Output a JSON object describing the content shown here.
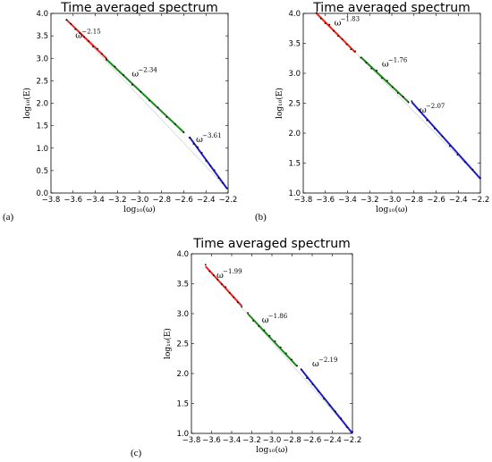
{
  "chart_data": [
    {
      "type": "line",
      "panel_label": "(a)",
      "title": "Time averaged spectrum",
      "xlabel": "log₁₀(ω)",
      "ylabel": "log₁₀(E)",
      "xlim": [
        -3.8,
        -2.2
      ],
      "ylim": [
        0.0,
        4.0
      ],
      "xticks": [
        -3.8,
        -3.6,
        -3.4,
        -3.2,
        -3.0,
        -2.8,
        -2.6,
        -2.4,
        -2.2
      ],
      "xtick_labels": [
        "−3.8",
        "−3.6",
        "−3.4",
        "−3.2",
        "−3.0",
        "−2.8",
        "−2.6",
        "−2.4",
        "−2.2"
      ],
      "yticks": [
        0.0,
        0.5,
        1.0,
        1.5,
        2.0,
        2.5,
        3.0,
        3.5,
        4.0
      ],
      "ytick_labels": [
        "0.0",
        "0.5",
        "1.0",
        "1.5",
        "2.0",
        "2.5",
        "3.0",
        "3.5",
        "4.0"
      ],
      "grid": false,
      "series": [
        {
          "color": "#e8241b",
          "x": [
            -3.66,
            -3.3
          ],
          "y": [
            3.86,
            3.0
          ]
        },
        {
          "color": "#1a8a1a",
          "x": [
            -3.3,
            -2.6
          ],
          "y": [
            2.98,
            1.35
          ]
        },
        {
          "color": "#1e1ec8",
          "x": [
            -2.55,
            -2.21
          ],
          "y": [
            1.25,
            0.1
          ]
        }
      ],
      "annotations": [
        {
          "base": "ω",
          "exponent": "−2.15",
          "x": -3.58,
          "y": 3.45
        },
        {
          "base": "ω",
          "exponent": "−2.34",
          "x": -3.07,
          "y": 2.6
        },
        {
          "base": "ω",
          "exponent": "−3.61",
          "x": -2.49,
          "y": 1.13
        }
      ]
    },
    {
      "type": "line",
      "panel_label": "(b)",
      "title": "Time averaged spectrum",
      "xlabel": "log₁₀(ω)",
      "ylabel": "log₁₀(E)",
      "xlim": [
        -3.8,
        -2.2
      ],
      "ylim": [
        1.0,
        4.0
      ],
      "xticks": [
        -3.8,
        -3.6,
        -3.4,
        -3.2,
        -3.0,
        -2.8,
        -2.6,
        -2.4,
        -2.2
      ],
      "xtick_labels": [
        "−3.8",
        "−3.6",
        "−3.4",
        "−3.2",
        "−3.0",
        "−2.8",
        "−2.6",
        "−2.4",
        "−2.2"
      ],
      "yticks": [
        1.0,
        1.5,
        2.0,
        2.5,
        3.0,
        3.5,
        4.0
      ],
      "ytick_labels": [
        "1.0",
        "1.5",
        "2.0",
        "2.5",
        "3.0",
        "3.5",
        "4.0"
      ],
      "grid": false,
      "series": [
        {
          "color": "#e8241b",
          "x": [
            -3.68,
            -3.33
          ],
          "y": [
            4.0,
            3.35
          ]
        },
        {
          "color": "#1a8a1a",
          "x": [
            -3.28,
            -2.85
          ],
          "y": [
            3.27,
            2.52
          ]
        },
        {
          "color": "#1e1ec8",
          "x": [
            -2.82,
            -2.2
          ],
          "y": [
            2.52,
            1.24
          ]
        }
      ],
      "annotations": [
        {
          "base": "ω",
          "exponent": "−1.83",
          "x": -3.52,
          "y": 3.8
        },
        {
          "base": "ω",
          "exponent": "−1.76",
          "x": -3.09,
          "y": 3.11
        },
        {
          "base": "ω",
          "exponent": "−2.07",
          "x": -2.75,
          "y": 2.34
        }
      ]
    },
    {
      "type": "line",
      "panel_label": "(c)",
      "title": "Time averaged spectrum",
      "xlabel": "log₁₀(ω)",
      "ylabel": "log₁₀(E)",
      "xlim": [
        -3.8,
        -2.2
      ],
      "ylim": [
        1.0,
        4.0
      ],
      "xticks": [
        -3.8,
        -3.6,
        -3.4,
        -3.2,
        -3.0,
        -2.8,
        -2.6,
        -2.4,
        -2.2
      ],
      "xtick_labels": [
        "−3.8",
        "−3.6",
        "−3.4",
        "−3.2",
        "−3.0",
        "−2.8",
        "−2.6",
        "−2.4",
        "−2.2"
      ],
      "yticks": [
        1.0,
        1.5,
        2.0,
        2.5,
        3.0,
        3.5,
        4.0
      ],
      "ytick_labels": [
        "1.0",
        "1.5",
        "2.0",
        "2.5",
        "3.0",
        "3.5",
        "4.0"
      ],
      "grid": false,
      "series": [
        {
          "color": "#e8241b",
          "x": [
            -3.66,
            -3.3
          ],
          "y": [
            3.79,
            3.13
          ]
        },
        {
          "color": "#1a8a1a",
          "x": [
            -3.24,
            -2.75
          ],
          "y": [
            3.0,
            2.12
          ]
        },
        {
          "color": "#1e1ec8",
          "x": [
            -2.71,
            -2.2
          ],
          "y": [
            2.07,
            1.0
          ]
        }
      ],
      "annotations": [
        {
          "base": "ω",
          "exponent": "−1.99",
          "x": -3.55,
          "y": 3.6
        },
        {
          "base": "ω",
          "exponent": "−1.86",
          "x": -3.1,
          "y": 2.85
        },
        {
          "base": "ω",
          "exponent": "−2.19",
          "x": -2.6,
          "y": 2.12
        }
      ]
    }
  ]
}
